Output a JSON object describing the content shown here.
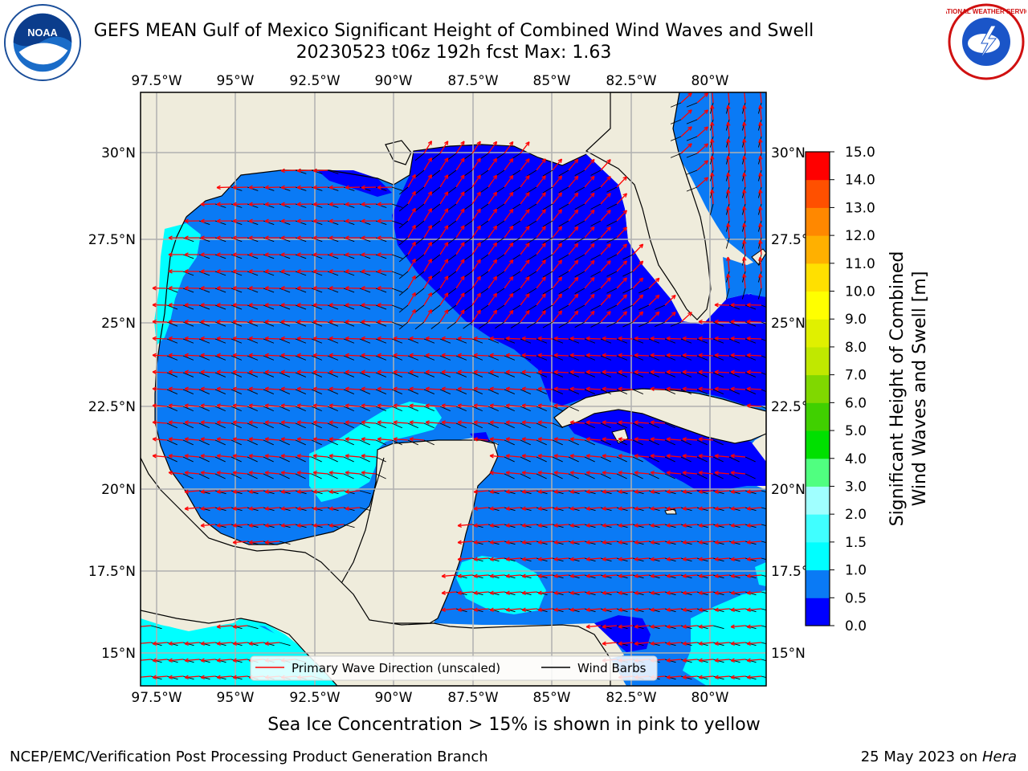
{
  "header": {
    "title_line1": "GEFS MEAN Gulf of Mexico Significant Height of Combined Wind Waves and Swell",
    "title_line2": "20230523 t06z 192h fcst   Max: 1.63"
  },
  "map": {
    "lon_ticks": [
      "97.5°W",
      "95°W",
      "92.5°W",
      "90°W",
      "87.5°W",
      "85°W",
      "82.5°W",
      "80°W"
    ],
    "lat_ticks": [
      "30°N",
      "27.5°N",
      "25°N",
      "22.5°N",
      "20°N",
      "17.5°N",
      "15°N"
    ],
    "lon_range": [
      -98,
      -78.3
    ],
    "lat_range": [
      14,
      31.8
    ],
    "colors": {
      "land": "#efecdc",
      "ocean_default": "#0a7af5",
      "grid": "#b0b0b0"
    }
  },
  "legend": {
    "wave_direction_label": "Primary Wave Direction (unscaled)",
    "wind_barbs_label": "Wind Barbs"
  },
  "colorbar": {
    "label_line1": "Significant Height of Combined",
    "label_line2": "Wind Waves and Swell [m]",
    "ticks": [
      "0.0",
      "0.5",
      "1.0",
      "1.5",
      "2.0",
      "3.0",
      "4.0",
      "5.0",
      "6.0",
      "7.0",
      "8.0",
      "9.0",
      "10.0",
      "11.0",
      "12.0",
      "13.0",
      "14.0",
      "15.0"
    ],
    "colors": [
      "#0000ff",
      "#0a7af5",
      "#00ffff",
      "#40ffff",
      "#a0ffff",
      "#50ff80",
      "#00e000",
      "#40d000",
      "#80d800",
      "#c0e800",
      "#e0f000",
      "#ffff00",
      "#ffe000",
      "#ffb000",
      "#ff8800",
      "#ff5000",
      "#ff0000"
    ]
  },
  "notes": {
    "ice": "Sea Ice Concentration > 15% is shown in pink to yellow"
  },
  "footer": {
    "left": "NCEP/EMC/Verification Post Processing Product Generation Branch",
    "right_date": "25 May 2023 on ",
    "right_machine": "Hera"
  },
  "logos": {
    "noaa_text": "NOAA",
    "nws_text": "NATIONAL WEATHER SERVICE"
  }
}
